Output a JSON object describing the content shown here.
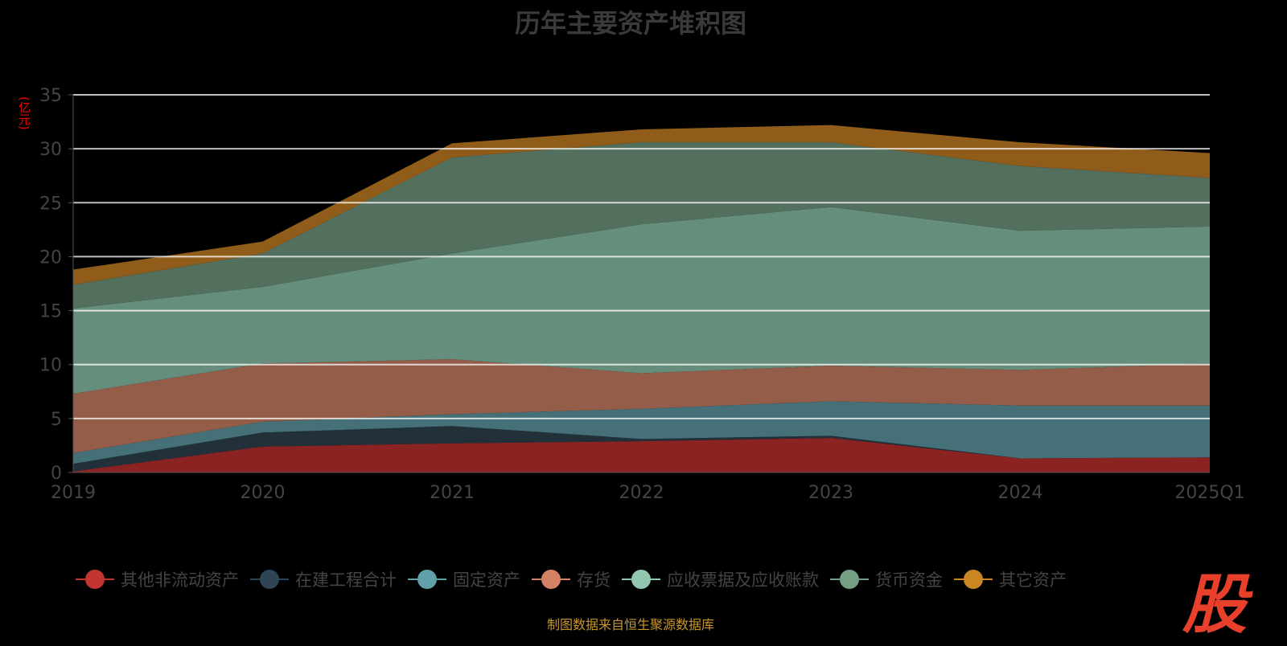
{
  "chart_data": {
    "type": "area",
    "stacked": true,
    "title": "历年主要资产堆积图",
    "ylabel": "(亿元)",
    "ylim": [
      0,
      35
    ],
    "yticks": [
      0,
      5,
      10,
      15,
      20,
      25,
      30,
      35
    ],
    "grid": true,
    "legend_position": "bottom",
    "categories": [
      "2019",
      "2020",
      "2021",
      "2022",
      "2023",
      "2024",
      "2025Q1"
    ],
    "series": [
      {
        "name": "其他非流动资产",
        "color": "#c23531",
        "fill": "#8b2323",
        "values": [
          0.1,
          2.4,
          2.7,
          2.9,
          3.2,
          1.3,
          1.4
        ]
      },
      {
        "name": "在建工程合计",
        "color": "#2f4554",
        "fill": "#22303a",
        "values": [
          0.7,
          1.3,
          1.6,
          0.2,
          0.2,
          0.0,
          0.0
        ]
      },
      {
        "name": "固定资产",
        "color": "#61a0a8",
        "fill": "#457078",
        "values": [
          1.0,
          1.0,
          1.1,
          2.8,
          3.2,
          4.9,
          4.8
        ]
      },
      {
        "name": "存货",
        "color": "#d48265",
        "fill": "#935d4a",
        "values": [
          5.5,
          5.4,
          5.1,
          3.3,
          3.3,
          3.3,
          3.9
        ]
      },
      {
        "name": "应收票据及应收账款",
        "color": "#91c7ae",
        "fill": "#668e7c",
        "values": [
          7.9,
          7.1,
          9.8,
          13.8,
          14.7,
          12.9,
          12.7
        ]
      },
      {
        "name": "货币资金",
        "color": "#749f83",
        "fill": "#53705e",
        "values": [
          2.2,
          3.1,
          8.9,
          7.6,
          6.0,
          6.0,
          4.5
        ]
      },
      {
        "name": "其它资产",
        "color": "#ca8622",
        "fill": "#8f5c1a",
        "values": [
          1.4,
          1.1,
          1.3,
          1.2,
          1.6,
          2.2,
          2.3
        ]
      }
    ]
  },
  "source": "制图数据来自恒生聚源数据库",
  "logo_text": "股"
}
